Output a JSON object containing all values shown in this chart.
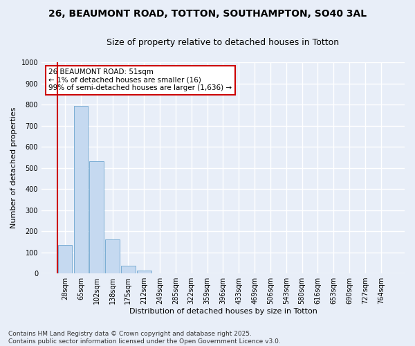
{
  "title_line1": "26, BEAUMONT ROAD, TOTTON, SOUTHAMPTON, SO40 3AL",
  "title_line2": "Size of property relative to detached houses in Totton",
  "xlabel": "Distribution of detached houses by size in Totton",
  "ylabel": "Number of detached properties",
  "categories": [
    "28sqm",
    "65sqm",
    "102sqm",
    "138sqm",
    "175sqm",
    "212sqm",
    "249sqm",
    "285sqm",
    "322sqm",
    "359sqm",
    "396sqm",
    "433sqm",
    "469sqm",
    "506sqm",
    "543sqm",
    "580sqm",
    "616sqm",
    "653sqm",
    "690sqm",
    "727sqm",
    "764sqm"
  ],
  "values": [
    135,
    795,
    530,
    162,
    37,
    13,
    0,
    0,
    0,
    0,
    0,
    0,
    0,
    0,
    0,
    0,
    0,
    0,
    0,
    0,
    0
  ],
  "bar_color": "#c5d9f0",
  "bar_edge_color": "#7aadd4",
  "highlight_color": "#cc0000",
  "red_line_x": -0.5,
  "ylim": [
    0,
    1000
  ],
  "yticks": [
    0,
    100,
    200,
    300,
    400,
    500,
    600,
    700,
    800,
    900,
    1000
  ],
  "annotation_text": "26 BEAUMONT ROAD: 51sqm\n← 1% of detached houses are smaller (16)\n99% of semi-detached houses are larger (1,636) →",
  "annotation_box_facecolor": "#ffffff",
  "annotation_box_edgecolor": "#cc0000",
  "footer_line1": "Contains HM Land Registry data © Crown copyright and database right 2025.",
  "footer_line2": "Contains public sector information licensed under the Open Government Licence v3.0.",
  "bg_color": "#e8eef8",
  "grid_color": "#ffffff",
  "title_fontsize": 10,
  "subtitle_fontsize": 9,
  "axis_label_fontsize": 8,
  "tick_fontsize": 7,
  "annotation_fontsize": 7.5,
  "footer_fontsize": 6.5
}
